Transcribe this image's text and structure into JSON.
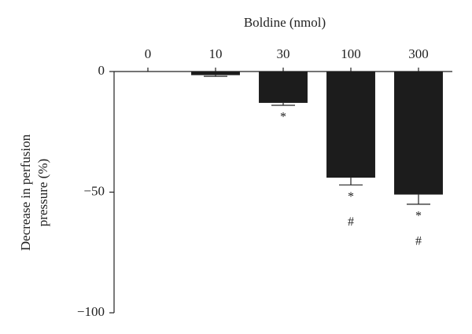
{
  "chart_data": {
    "type": "bar",
    "xlabel": "Boldine (nmol)",
    "ylabel": [
      "Decrease in perfusion",
      "pressure (%)"
    ],
    "categories": [
      "0",
      "10",
      "30",
      "100",
      "300"
    ],
    "values": [
      0,
      -1.5,
      -13,
      -44,
      -51
    ],
    "errors": [
      0,
      0.5,
      1,
      3,
      4
    ],
    "color": "#1c1c1c",
    "ylim": [
      -100,
      0
    ],
    "yticks": [
      0,
      {
        "value": -50,
        "label": "−50"
      },
      {
        "value": -100,
        "label": "−100"
      }
    ],
    "annotations": [
      {
        "category": "30",
        "labels": [
          "*"
        ]
      },
      {
        "category": "100",
        "labels": [
          "*",
          "#"
        ]
      },
      {
        "category": "300",
        "labels": [
          "*",
          "#"
        ]
      }
    ]
  }
}
